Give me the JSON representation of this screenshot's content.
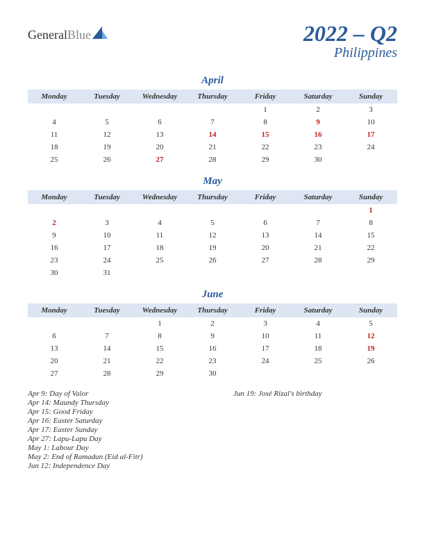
{
  "logo": {
    "text1": "General",
    "text2": "Blue"
  },
  "title": {
    "main": "2022 – Q2",
    "sub": "Philippines"
  },
  "colors": {
    "accent": "#2a5a9a",
    "header_bg": "#dde6f2",
    "holiday": "#c02020",
    "text": "#333333"
  },
  "weekdays": [
    "Monday",
    "Tuesday",
    "Wednesday",
    "Thursday",
    "Friday",
    "Saturday",
    "Sunday"
  ],
  "months": [
    {
      "name": "April",
      "weeks": [
        [
          "",
          "",
          "",
          "",
          "1",
          "2",
          "3"
        ],
        [
          "4",
          "5",
          "6",
          "7",
          "8",
          "9",
          "10"
        ],
        [
          "11",
          "12",
          "13",
          "14",
          "15",
          "16",
          "17"
        ],
        [
          "18",
          "19",
          "20",
          "21",
          "22",
          "23",
          "24"
        ],
        [
          "25",
          "26",
          "27",
          "28",
          "29",
          "30",
          ""
        ]
      ],
      "holidays": [
        "9",
        "14",
        "15",
        "16",
        "17",
        "27"
      ]
    },
    {
      "name": "May",
      "weeks": [
        [
          "",
          "",
          "",
          "",
          "",
          "",
          "1"
        ],
        [
          "2",
          "3",
          "4",
          "5",
          "6",
          "7",
          "8"
        ],
        [
          "9",
          "10",
          "11",
          "12",
          "13",
          "14",
          "15"
        ],
        [
          "16",
          "17",
          "18",
          "19",
          "20",
          "21",
          "22"
        ],
        [
          "23",
          "24",
          "25",
          "26",
          "27",
          "28",
          "29"
        ],
        [
          "30",
          "31",
          "",
          "",
          "",
          "",
          ""
        ]
      ],
      "holidays": [
        "1",
        "2"
      ]
    },
    {
      "name": "June",
      "weeks": [
        [
          "",
          "",
          "1",
          "2",
          "3",
          "4",
          "5"
        ],
        [
          "6",
          "7",
          "8",
          "9",
          "10",
          "11",
          "12"
        ],
        [
          "13",
          "14",
          "15",
          "16",
          "17",
          "18",
          "19"
        ],
        [
          "20",
          "21",
          "22",
          "23",
          "24",
          "25",
          "26"
        ],
        [
          "27",
          "28",
          "29",
          "30",
          "",
          "",
          ""
        ]
      ],
      "holidays": [
        "12",
        "19"
      ]
    }
  ],
  "holiday_list": {
    "col1": [
      "Apr 9: Day of Valor",
      "Apr 14: Maundy Thursday",
      "Apr 15: Good Friday",
      "Apr 16: Easter Saturday",
      "Apr 17: Easter Sunday",
      "Apr 27: Lapu-Lapu Day",
      "May 1: Labour Day",
      "May 2: End of Ramadan (Eid al-Fitr)",
      "Jun 12: Independence Day"
    ],
    "col2": [
      "Jun 19: José Rizal's birthday"
    ]
  }
}
